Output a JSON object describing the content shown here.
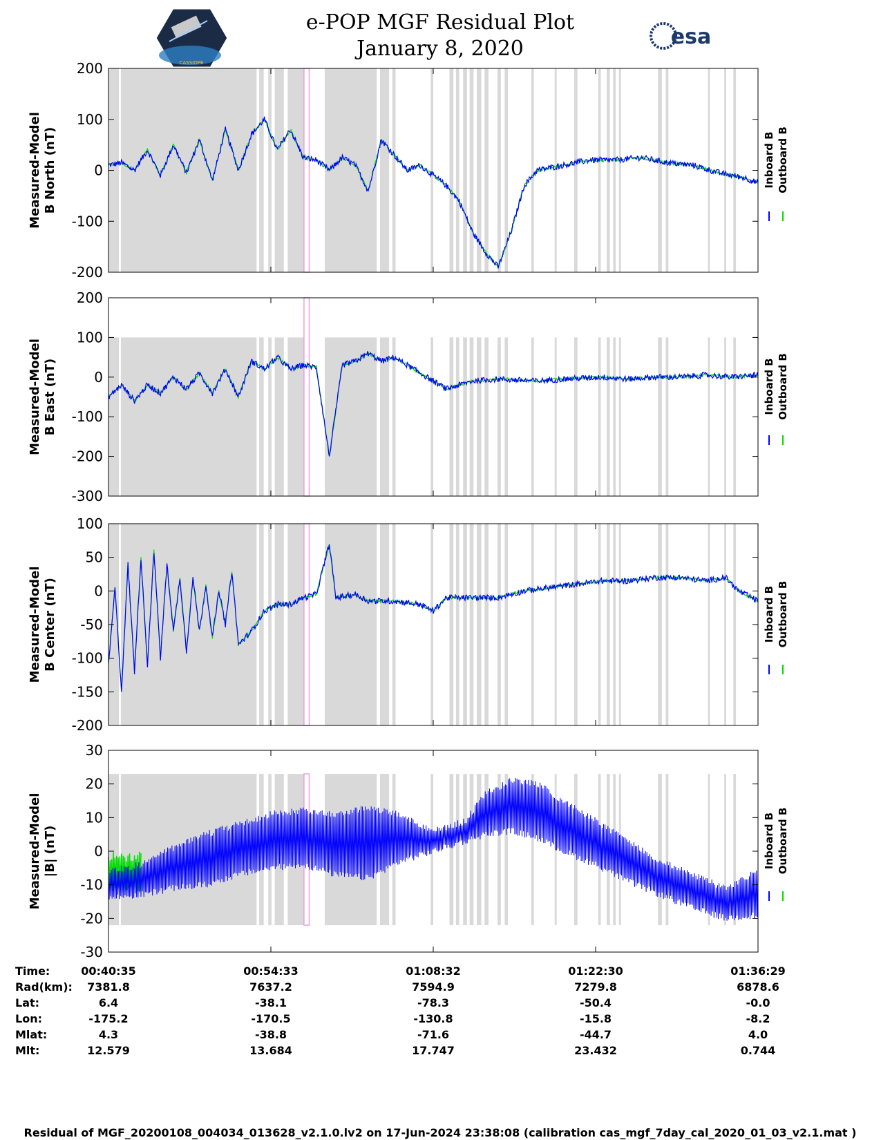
{
  "chart_data": {
    "type": "line",
    "title": "e-POP MGF Residual Plot",
    "subtitle": "January 8, 2020",
    "series_names": [
      "Inboard B",
      "Outboard B"
    ],
    "colors": {
      "inboard": "#0000ff",
      "outboard": "#00dd00",
      "gap": "#d9d9d9",
      "pink": "#e8a0e0"
    },
    "panels": [
      {
        "ylabel1": "Measured-Model",
        "ylabel2": "B North (nT)",
        "ylim": [
          -200,
          200
        ],
        "yticks": [
          200,
          100,
          0,
          -100,
          -200
        ],
        "shade_range": [
          -200,
          200
        ],
        "kind": "north"
      },
      {
        "ylabel1": "Measured-Model",
        "ylabel2": "B East (nT)",
        "ylim": [
          -300,
          200
        ],
        "yticks": [
          200,
          100,
          0,
          -100,
          -200,
          -300
        ],
        "shade_range": [
          -300,
          100
        ],
        "kind": "east"
      },
      {
        "ylabel1": "Measured-Model",
        "ylabel2": "B Center (nT)",
        "ylim": [
          -200,
          100
        ],
        "yticks": [
          100,
          50,
          0,
          -50,
          -100,
          -150,
          -200
        ],
        "shade_range": [
          -200,
          100
        ],
        "kind": "center"
      },
      {
        "ylabel1": "Measured-Model",
        "ylabel2": "|B| (nT)",
        "ylim": [
          -30,
          30
        ],
        "yticks": [
          30,
          20,
          10,
          0,
          -10,
          -20,
          -30
        ],
        "shade_range": [
          -22,
          23
        ],
        "kind": "total"
      }
    ],
    "x_fraction_ticks": [
      0,
      0.25,
      0.5,
      0.75,
      1.0
    ],
    "gap_intervals": [
      [
        0.0,
        0.016
      ],
      [
        0.019,
        0.228
      ],
      [
        0.232,
        0.239
      ],
      [
        0.246,
        0.251
      ],
      [
        0.256,
        0.27
      ],
      [
        0.276,
        0.301
      ],
      [
        0.333,
        0.413
      ],
      [
        0.418,
        0.432
      ],
      [
        0.437,
        0.442
      ],
      [
        0.496,
        0.5
      ],
      [
        0.525,
        0.531
      ],
      [
        0.535,
        0.54
      ],
      [
        0.546,
        0.552
      ],
      [
        0.556,
        0.562
      ],
      [
        0.567,
        0.574
      ],
      [
        0.579,
        0.585
      ],
      [
        0.599,
        0.604
      ],
      [
        0.61,
        0.615
      ],
      [
        0.651,
        0.655
      ],
      [
        0.687,
        0.69
      ],
      [
        0.717,
        0.722
      ],
      [
        0.754,
        0.758
      ],
      [
        0.767,
        0.772
      ],
      [
        0.777,
        0.781
      ],
      [
        0.786,
        0.789
      ],
      [
        0.846,
        0.852
      ],
      [
        0.858,
        0.862
      ],
      [
        0.923,
        0.926
      ],
      [
        0.948,
        0.951
      ],
      [
        0.962,
        0.966
      ]
    ],
    "pink_intervals": [
      [
        0.301,
        0.309
      ]
    ],
    "north_trace": [
      [
        0,
        10
      ],
      [
        0.02,
        15
      ],
      [
        0.04,
        0
      ],
      [
        0.06,
        40
      ],
      [
        0.08,
        -10
      ],
      [
        0.1,
        50
      ],
      [
        0.12,
        -5
      ],
      [
        0.14,
        60
      ],
      [
        0.16,
        -20
      ],
      [
        0.18,
        80
      ],
      [
        0.2,
        0
      ],
      [
        0.22,
        70
      ],
      [
        0.24,
        100
      ],
      [
        0.26,
        40
      ],
      [
        0.28,
        80
      ],
      [
        0.3,
        25
      ],
      [
        0.32,
        20
      ],
      [
        0.34,
        0
      ],
      [
        0.36,
        25
      ],
      [
        0.38,
        10
      ],
      [
        0.4,
        -40
      ],
      [
        0.42,
        60
      ],
      [
        0.44,
        30
      ],
      [
        0.46,
        0
      ],
      [
        0.48,
        10
      ],
      [
        0.5,
        -10
      ],
      [
        0.52,
        -30
      ],
      [
        0.54,
        -60
      ],
      [
        0.56,
        -120
      ],
      [
        0.58,
        -160
      ],
      [
        0.6,
        -190
      ],
      [
        0.62,
        -120
      ],
      [
        0.64,
        -30
      ],
      [
        0.66,
        0
      ],
      [
        0.7,
        10
      ],
      [
        0.74,
        20
      ],
      [
        0.78,
        20
      ],
      [
        0.82,
        25
      ],
      [
        0.86,
        15
      ],
      [
        0.9,
        10
      ],
      [
        0.94,
        -5
      ],
      [
        0.98,
        -15
      ],
      [
        1.0,
        -25
      ]
    ],
    "east_trace": [
      [
        0,
        -50
      ],
      [
        0.02,
        -20
      ],
      [
        0.04,
        -60
      ],
      [
        0.06,
        -20
      ],
      [
        0.08,
        -40
      ],
      [
        0.1,
        0
      ],
      [
        0.12,
        -30
      ],
      [
        0.14,
        10
      ],
      [
        0.16,
        -40
      ],
      [
        0.18,
        20
      ],
      [
        0.2,
        -50
      ],
      [
        0.22,
        40
      ],
      [
        0.24,
        20
      ],
      [
        0.26,
        50
      ],
      [
        0.28,
        20
      ],
      [
        0.3,
        30
      ],
      [
        0.32,
        25
      ],
      [
        0.34,
        -200
      ],
      [
        0.36,
        30
      ],
      [
        0.38,
        40
      ],
      [
        0.4,
        60
      ],
      [
        0.42,
        40
      ],
      [
        0.44,
        50
      ],
      [
        0.46,
        30
      ],
      [
        0.48,
        10
      ],
      [
        0.5,
        -10
      ],
      [
        0.52,
        -30
      ],
      [
        0.54,
        -20
      ],
      [
        0.56,
        -10
      ],
      [
        0.6,
        -5
      ],
      [
        0.66,
        -10
      ],
      [
        0.7,
        -5
      ],
      [
        0.76,
        0
      ],
      [
        0.8,
        -5
      ],
      [
        0.84,
        0
      ],
      [
        0.88,
        0
      ],
      [
        0.92,
        5
      ],
      [
        0.96,
        0
      ],
      [
        1.0,
        5
      ]
    ],
    "center_trace": [
      [
        0,
        -110
      ],
      [
        0.01,
        5
      ],
      [
        0.02,
        -150
      ],
      [
        0.03,
        40
      ],
      [
        0.04,
        -120
      ],
      [
        0.05,
        50
      ],
      [
        0.06,
        -110
      ],
      [
        0.07,
        60
      ],
      [
        0.08,
        -100
      ],
      [
        0.09,
        40
      ],
      [
        0.1,
        -60
      ],
      [
        0.11,
        20
      ],
      [
        0.12,
        -90
      ],
      [
        0.13,
        20
      ],
      [
        0.14,
        -60
      ],
      [
        0.15,
        10
      ],
      [
        0.16,
        -70
      ],
      [
        0.17,
        0
      ],
      [
        0.18,
        -50
      ],
      [
        0.19,
        30
      ],
      [
        0.2,
        -80
      ],
      [
        0.22,
        -60
      ],
      [
        0.24,
        -30
      ],
      [
        0.26,
        -20
      ],
      [
        0.28,
        -20
      ],
      [
        0.3,
        -10
      ],
      [
        0.32,
        -5
      ],
      [
        0.34,
        70
      ],
      [
        0.35,
        -10
      ],
      [
        0.38,
        -5
      ],
      [
        0.4,
        -15
      ],
      [
        0.44,
        -15
      ],
      [
        0.48,
        -20
      ],
      [
        0.5,
        -30
      ],
      [
        0.52,
        -10
      ],
      [
        0.56,
        -10
      ],
      [
        0.6,
        -10
      ],
      [
        0.64,
        0
      ],
      [
        0.68,
        5
      ],
      [
        0.72,
        10
      ],
      [
        0.76,
        15
      ],
      [
        0.8,
        15
      ],
      [
        0.84,
        20
      ],
      [
        0.88,
        20
      ],
      [
        0.92,
        15
      ],
      [
        0.95,
        20
      ],
      [
        0.97,
        0
      ],
      [
        1.0,
        -15
      ]
    ],
    "total_upper": [
      [
        0,
        -5
      ],
      [
        0.05,
        -3
      ],
      [
        0.1,
        2
      ],
      [
        0.15,
        6
      ],
      [
        0.2,
        9
      ],
      [
        0.25,
        12
      ],
      [
        0.3,
        13
      ],
      [
        0.35,
        12
      ],
      [
        0.4,
        14
      ],
      [
        0.45,
        12
      ],
      [
        0.5,
        7
      ],
      [
        0.55,
        10
      ],
      [
        0.58,
        18
      ],
      [
        0.62,
        22
      ],
      [
        0.66,
        21
      ],
      [
        0.7,
        16
      ],
      [
        0.75,
        10
      ],
      [
        0.8,
        4
      ],
      [
        0.85,
        -2
      ],
      [
        0.9,
        -6
      ],
      [
        0.95,
        -10
      ],
      [
        1.0,
        -5
      ]
    ],
    "total_lower": [
      [
        0,
        -15
      ],
      [
        0.05,
        -14
      ],
      [
        0.1,
        -12
      ],
      [
        0.15,
        -11
      ],
      [
        0.2,
        -8
      ],
      [
        0.25,
        -6
      ],
      [
        0.3,
        -5
      ],
      [
        0.35,
        -8
      ],
      [
        0.4,
        -9
      ],
      [
        0.45,
        -4
      ],
      [
        0.5,
        -1
      ],
      [
        0.55,
        2
      ],
      [
        0.58,
        4
      ],
      [
        0.62,
        5
      ],
      [
        0.66,
        3
      ],
      [
        0.7,
        -1
      ],
      [
        0.75,
        -5
      ],
      [
        0.8,
        -10
      ],
      [
        0.85,
        -14
      ],
      [
        0.9,
        -18
      ],
      [
        0.95,
        -21
      ],
      [
        1.0,
        -20
      ]
    ]
  },
  "info_table": {
    "row_labels": [
      "Time:",
      "Rad(km):",
      "Lat:",
      "Lon:",
      "Mlat:",
      "Mlt:"
    ],
    "columns": [
      [
        "00:40:35",
        "7381.8",
        "6.4",
        "-175.2",
        "4.3",
        "12.579"
      ],
      [
        "00:54:33",
        "7637.2",
        "-38.1",
        "-170.5",
        "-38.8",
        "13.684"
      ],
      [
        "01:08:32",
        "7594.9",
        "-78.3",
        "-130.8",
        "-71.6",
        "17.747"
      ],
      [
        "01:22:30",
        "7279.8",
        "-50.4",
        "-15.8",
        "-44.7",
        "23.432"
      ],
      [
        "01:36:29",
        "6878.6",
        "-0.0",
        "-8.2",
        "4.0",
        "0.744"
      ]
    ]
  },
  "logos": {
    "left": "CASSIOPE",
    "right": "esa"
  },
  "footer": "Residual of MGF_20200108_004034_013628_v2.1.0.lv2 on 17-Jun-2024 23:38:08 (calibration cas_mgf_7day_cal_2020_01_03_v2.1.mat )"
}
